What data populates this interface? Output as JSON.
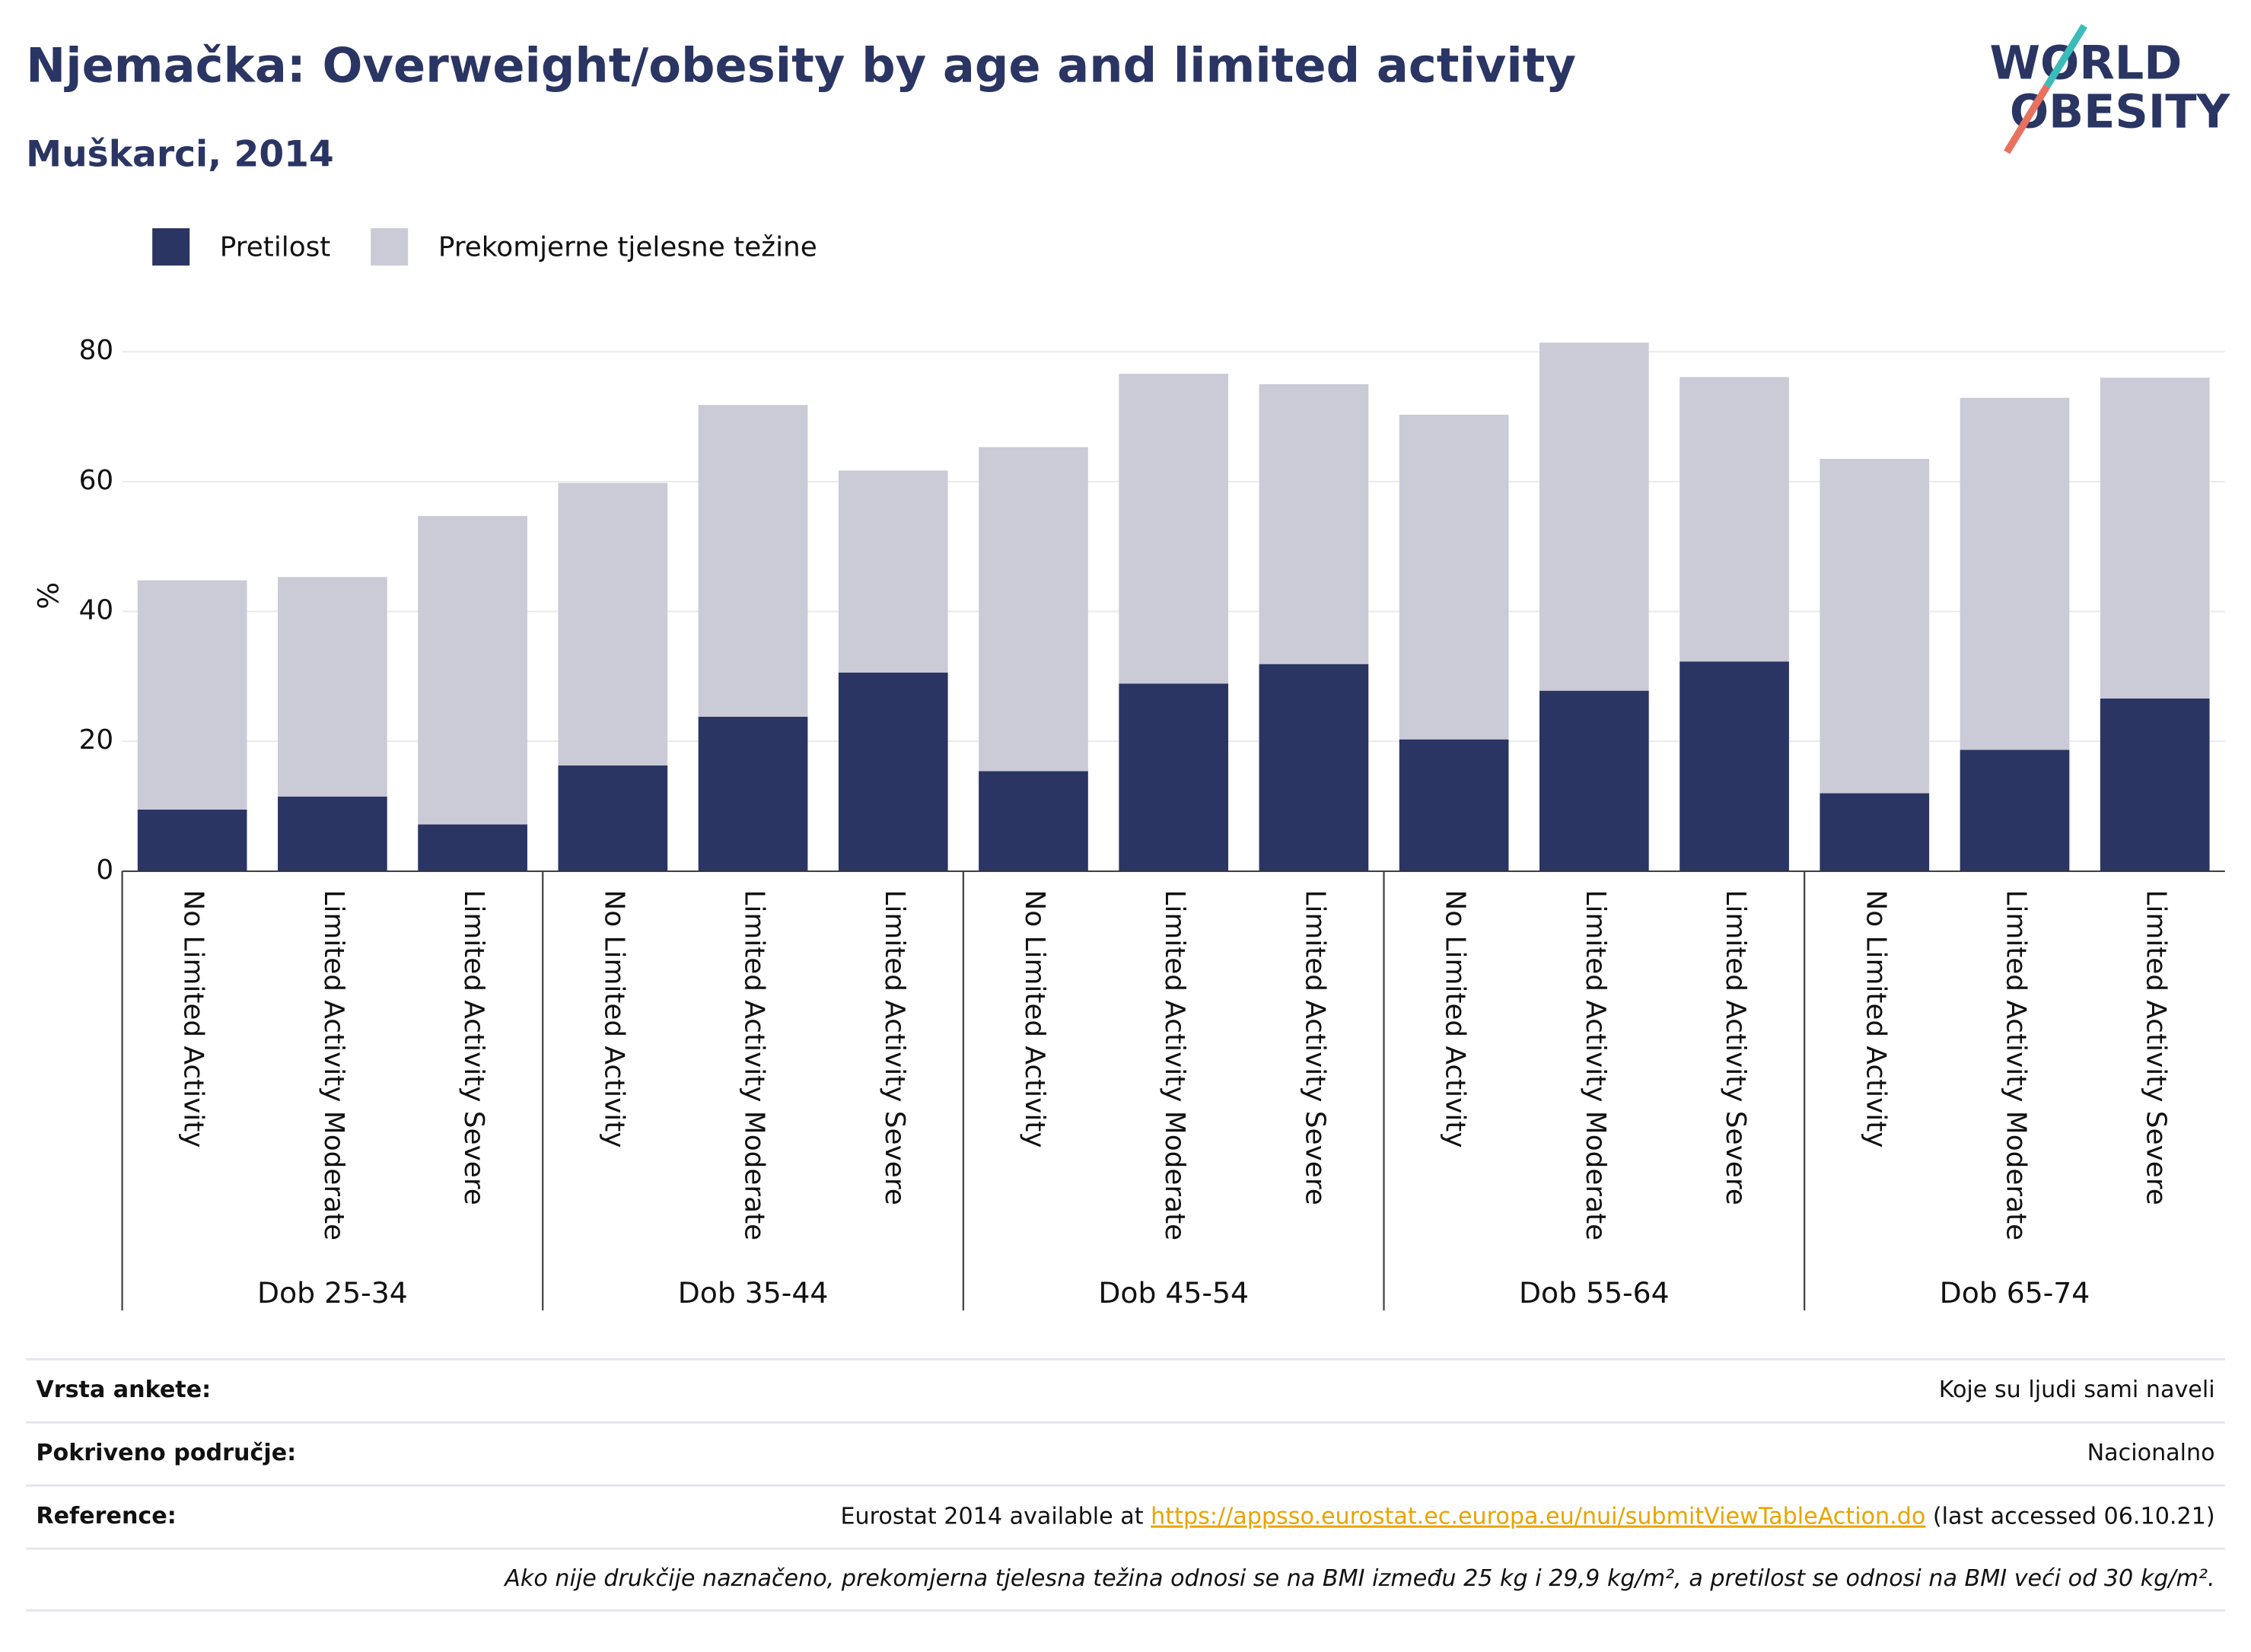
{
  "chart_data": {
    "type": "bar",
    "stacked": true,
    "title": "Njemačka: Overweight/obesity by age and limited activity",
    "subtitle": "Muškarci, 2014",
    "logo": [
      "WORLD",
      "OBESITY"
    ],
    "y_label": "%",
    "categories": [
      "No Limited Activity",
      "Limited Activity Moderate",
      "Limited Activity Severe",
      "No Limited Activity",
      "Limited Activity Moderate",
      "Limited Activity Severe",
      "No Limited Activity",
      "Limited Activity Moderate",
      "Limited Activity Severe",
      "No Limited Activity",
      "Limited Activity Moderate",
      "Limited Activity Severe",
      "No Limited Activity",
      "Limited Activity Moderate",
      "Limited Activity Severe"
    ],
    "groups": [
      "Dob 25-34",
      "Dob 35-44",
      "Dob 45-54",
      "Dob 55-64",
      "Dob 65-74"
    ],
    "series": [
      {
        "name": "Pretilost",
        "color": "#2a3563",
        "values": [
          9.5,
          11.5,
          7.2,
          16.3,
          23.8,
          30.6,
          15.4,
          28.9,
          31.9,
          20.3,
          27.8,
          32.3,
          12.0,
          18.7,
          26.6
        ]
      },
      {
        "name": "Prekomjerne tjelesne težine",
        "color": "#cacbd6",
        "values": [
          35.3,
          33.8,
          47.5,
          43.5,
          48.0,
          31.1,
          49.9,
          47.7,
          43.1,
          50.0,
          53.6,
          43.8,
          51.5,
          54.2,
          49.4
        ]
      }
    ],
    "ylim": [
      0,
      82
    ],
    "yticks": [
      0,
      20,
      40,
      60,
      80
    ],
    "grid": true
  },
  "footer": {
    "rows": [
      {
        "label": "Vrsta ankete:",
        "value": "Koje su ljudi sami naveli"
      },
      {
        "label": "Pokriveno područje:",
        "value": "Nacionalno"
      }
    ],
    "reference": {
      "label": "Reference:",
      "before": "Eurostat 2014 available at ",
      "link": "https://appsso.eurostat.ec.europa.eu/nui/submitViewTableAction.do",
      "after": " (last accessed 06.10.21)"
    },
    "note": "Ako nije drukčije naznačeno, prekomjerna tjelesna težina odnosi se na BMI između 25 kg i 29,9 kg/m², a pretilost se odnosi na BMI veći od 30 kg/m²."
  }
}
